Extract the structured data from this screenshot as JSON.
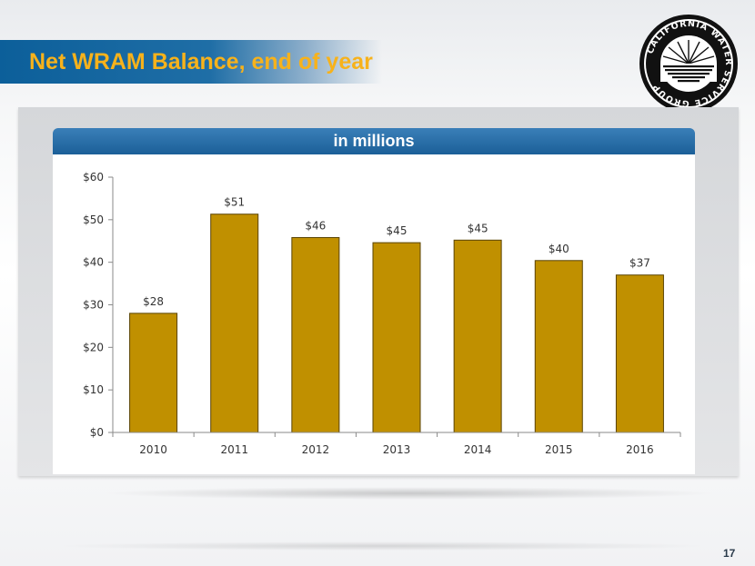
{
  "slide": {
    "title": "Net WRAM Balance, end of year",
    "page_number": "17"
  },
  "panel": {
    "header": "in millions"
  },
  "logo": {
    "ring_text": "CALIFORNIA WATER SERVICE GROUP"
  },
  "colors": {
    "bar": "#c09000",
    "bar_stroke": "#5a4300",
    "title": "#f7b21b",
    "title_bar": "#0c5f9a",
    "header": "#1b5f98"
  },
  "chart_data": {
    "type": "bar",
    "title": "",
    "xlabel": "",
    "ylabel": "",
    "categories": [
      "2010",
      "2011",
      "2012",
      "2013",
      "2014",
      "2015",
      "2016"
    ],
    "values": [
      28,
      51.3,
      45.8,
      44.6,
      45.2,
      40.4,
      37
    ],
    "data_labels": [
      "$28",
      "$51",
      "$46",
      "$45",
      "$45",
      "$40",
      "$37"
    ],
    "ylim": [
      0,
      60
    ],
    "yticks": [
      0,
      10,
      20,
      30,
      40,
      50,
      60
    ],
    "ytick_labels": [
      "$0",
      "$10",
      "$20",
      "$30",
      "$40",
      "$50",
      "$60"
    ],
    "grid": false,
    "legend": "none"
  }
}
